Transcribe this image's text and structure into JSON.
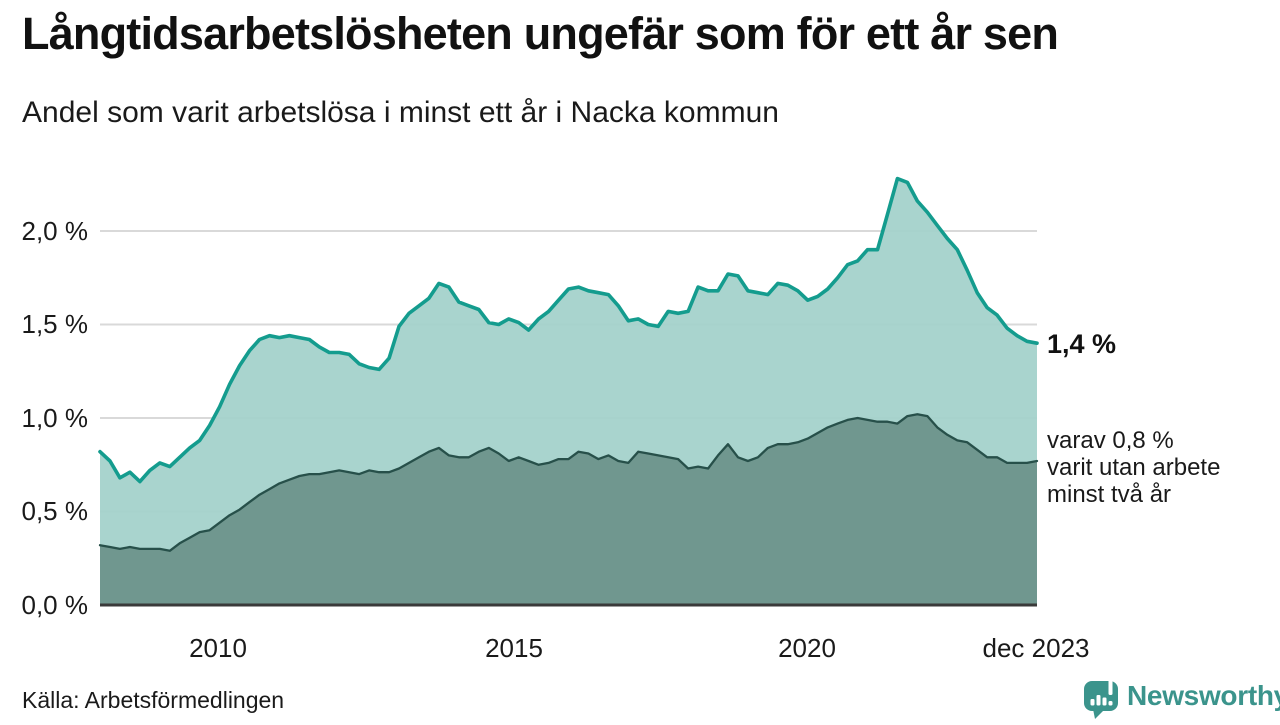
{
  "footer": {
    "brand": "Newsworthy"
  },
  "chart_data": {
    "type": "area",
    "title": "Långtidsarbetslösheten ungefär som för ett år sen",
    "subtitle": "Andel som varit arbetslösa i minst ett år i Nacka kommun",
    "source": "Källa: Arbetsförmedlingen",
    "unit": "%",
    "xlim": [
      2008.0,
      2023.92
    ],
    "ylim": [
      0,
      2.51
    ],
    "grid": "horizontal only",
    "legend": "none, direct labels at right edge of plot",
    "x_ticks": [
      {
        "label": "2010",
        "year": 2010
      },
      {
        "label": "2015",
        "year": 2015
      },
      {
        "label": "2020",
        "year": 2020
      },
      {
        "label": "dec 2023",
        "year": 2023.92
      }
    ],
    "y_ticks": [
      {
        "label": "2,0 %",
        "value": 2.0,
        "grid": true
      },
      {
        "label": "1,5 %",
        "value": 1.5,
        "grid": true
      },
      {
        "label": "1,0 %",
        "value": 1.0,
        "grid": true
      },
      {
        "label": "0,5 %",
        "value": 0.5,
        "grid": true
      },
      {
        "label": "0,0 %",
        "value": 0.0,
        "grid": false
      }
    ],
    "annotations": {
      "latest_value": "1,4 %",
      "secondary_line1": "varav 0,8 %",
      "secondary_line2": "varit utan arbete",
      "secondary_line3": "minst två år"
    },
    "colors": {
      "grid": "#d9d9d9",
      "axis_line": "#3a3a3a",
      "text": "#1a1a1a",
      "brand": "#3b948c"
    },
    "x_sampling": {
      "start": 2008.0,
      "end": 2023.92,
      "points": 95,
      "spacing": "even"
    },
    "series": [
      {
        "name": "Andel arbetslösa minst ett år",
        "latest_value": 1.4,
        "stroke": "#149c8e",
        "fill": "#a2d1ca",
        "values": [
          0.82,
          0.77,
          0.68,
          0.71,
          0.66,
          0.72,
          0.76,
          0.74,
          0.79,
          0.84,
          0.88,
          0.96,
          1.06,
          1.18,
          1.28,
          1.36,
          1.42,
          1.44,
          1.43,
          1.44,
          1.43,
          1.42,
          1.38,
          1.35,
          1.35,
          1.34,
          1.29,
          1.27,
          1.26,
          1.32,
          1.49,
          1.56,
          1.6,
          1.64,
          1.72,
          1.7,
          1.62,
          1.6,
          1.58,
          1.51,
          1.5,
          1.53,
          1.51,
          1.47,
          1.53,
          1.57,
          1.63,
          1.69,
          1.7,
          1.68,
          1.67,
          1.66,
          1.6,
          1.52,
          1.53,
          1.5,
          1.49,
          1.57,
          1.56,
          1.57,
          1.7,
          1.68,
          1.68,
          1.77,
          1.76,
          1.68,
          1.67,
          1.66,
          1.72,
          1.71,
          1.68,
          1.63,
          1.65,
          1.69,
          1.75,
          1.82,
          1.84,
          1.9,
          1.9,
          2.09,
          2.28,
          2.26,
          2.16,
          2.1,
          2.03,
          1.96,
          1.9,
          1.79,
          1.67,
          1.59,
          1.55,
          1.48,
          1.44,
          1.41,
          1.4
        ]
      },
      {
        "name": "varav utan arbete minst två år",
        "latest_value": 0.8,
        "stroke": "#27504a",
        "fill": "#6d938b",
        "values": [
          0.32,
          0.31,
          0.3,
          0.31,
          0.3,
          0.3,
          0.3,
          0.29,
          0.33,
          0.36,
          0.39,
          0.4,
          0.44,
          0.48,
          0.51,
          0.55,
          0.59,
          0.62,
          0.65,
          0.67,
          0.69,
          0.7,
          0.7,
          0.71,
          0.72,
          0.71,
          0.7,
          0.72,
          0.71,
          0.71,
          0.73,
          0.76,
          0.79,
          0.82,
          0.84,
          0.8,
          0.79,
          0.79,
          0.82,
          0.84,
          0.81,
          0.77,
          0.79,
          0.77,
          0.75,
          0.76,
          0.78,
          0.78,
          0.82,
          0.81,
          0.78,
          0.8,
          0.77,
          0.76,
          0.82,
          0.81,
          0.8,
          0.79,
          0.78,
          0.73,
          0.74,
          0.73,
          0.8,
          0.86,
          0.79,
          0.77,
          0.79,
          0.84,
          0.86,
          0.86,
          0.87,
          0.89,
          0.92,
          0.95,
          0.97,
          0.99,
          1.0,
          0.99,
          0.98,
          0.98,
          0.97,
          1.01,
          1.02,
          1.01,
          0.95,
          0.91,
          0.88,
          0.87,
          0.83,
          0.79,
          0.79,
          0.76,
          0.76,
          0.76,
          0.77
        ]
      }
    ]
  }
}
